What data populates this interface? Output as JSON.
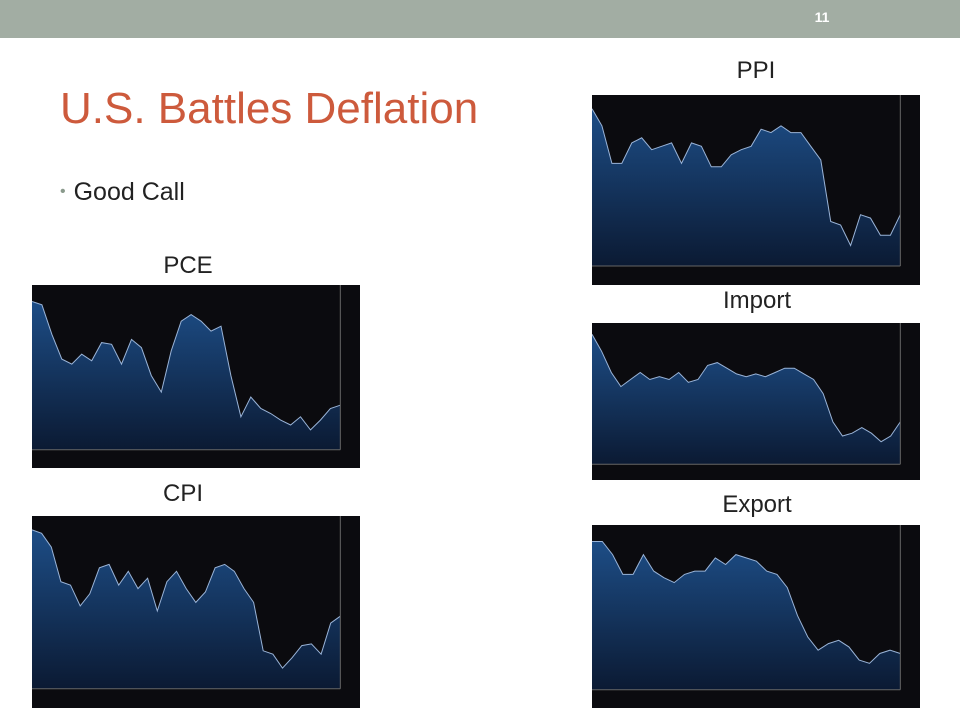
{
  "slide_number": "11",
  "title": "U.S. Battles Deflation",
  "bullets": [
    "Good Call"
  ],
  "panels": [
    {
      "label": "PCE"
    },
    {
      "label": "CPI"
    },
    {
      "label": "PPI"
    },
    {
      "label": "Import"
    },
    {
      "label": "Export"
    }
  ]
}
